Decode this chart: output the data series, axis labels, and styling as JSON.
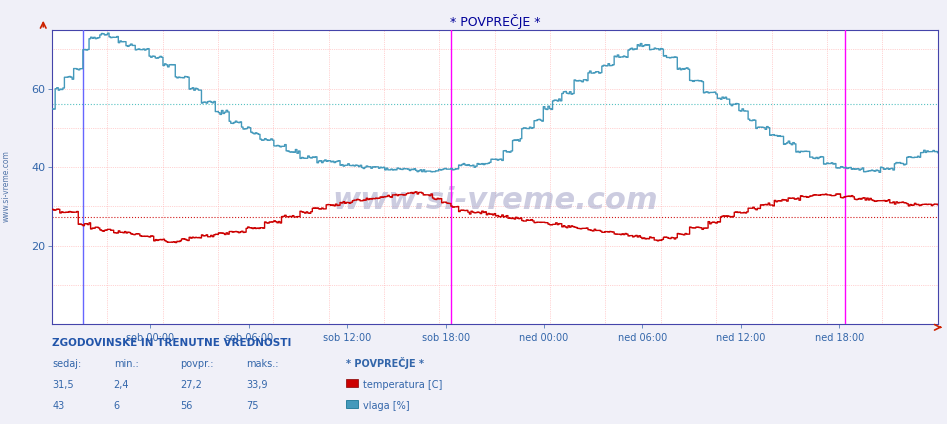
{
  "title": "* POVPREČJE *",
  "bg_color": "#f0f0f8",
  "plot_bg_color": "#ffffff",
  "red_grid_color": "#ffcccc",
  "cyan_grid_color": "#cceeee",
  "temp_color": "#cc0000",
  "humidity_color": "#4499bb",
  "temp_avg_color": "#cc0000",
  "humidity_avg_color": "#44bbbb",
  "vline_magenta": "#ff00ff",
  "vline_blue": "#4444ff",
  "ymin": 0,
  "ymax": 75,
  "yticks": [
    20,
    40,
    60
  ],
  "temp_avg": 27.2,
  "humidity_avg": 56,
  "watermark": "www.si-vreme.com",
  "xtick_labels": [
    "sob 00:00",
    "sob 06:00",
    "sob 12:00",
    "sob 18:00",
    "ned 00:00",
    "ned 06:00",
    "ned 12:00",
    "ned 18:00"
  ],
  "bottom_title": "ZGODOVINSKE IN TRENUTNE VREDNOSTI",
  "col_headers": [
    "sedaj:",
    "min.:",
    "povpr.:",
    "maks.:"
  ],
  "temp_row": [
    "31,5",
    "2,4",
    "27,2",
    "33,9"
  ],
  "humidity_row": [
    "43",
    "6",
    "56",
    "75"
  ],
  "legend_title": "* POVPREČJE *",
  "legend_temp": "temperatura [C]",
  "legend_humidity": "vlaga [%]",
  "n_points": 576,
  "hours": 48,
  "sob18_hour": 19,
  "ned18_hour": 43
}
